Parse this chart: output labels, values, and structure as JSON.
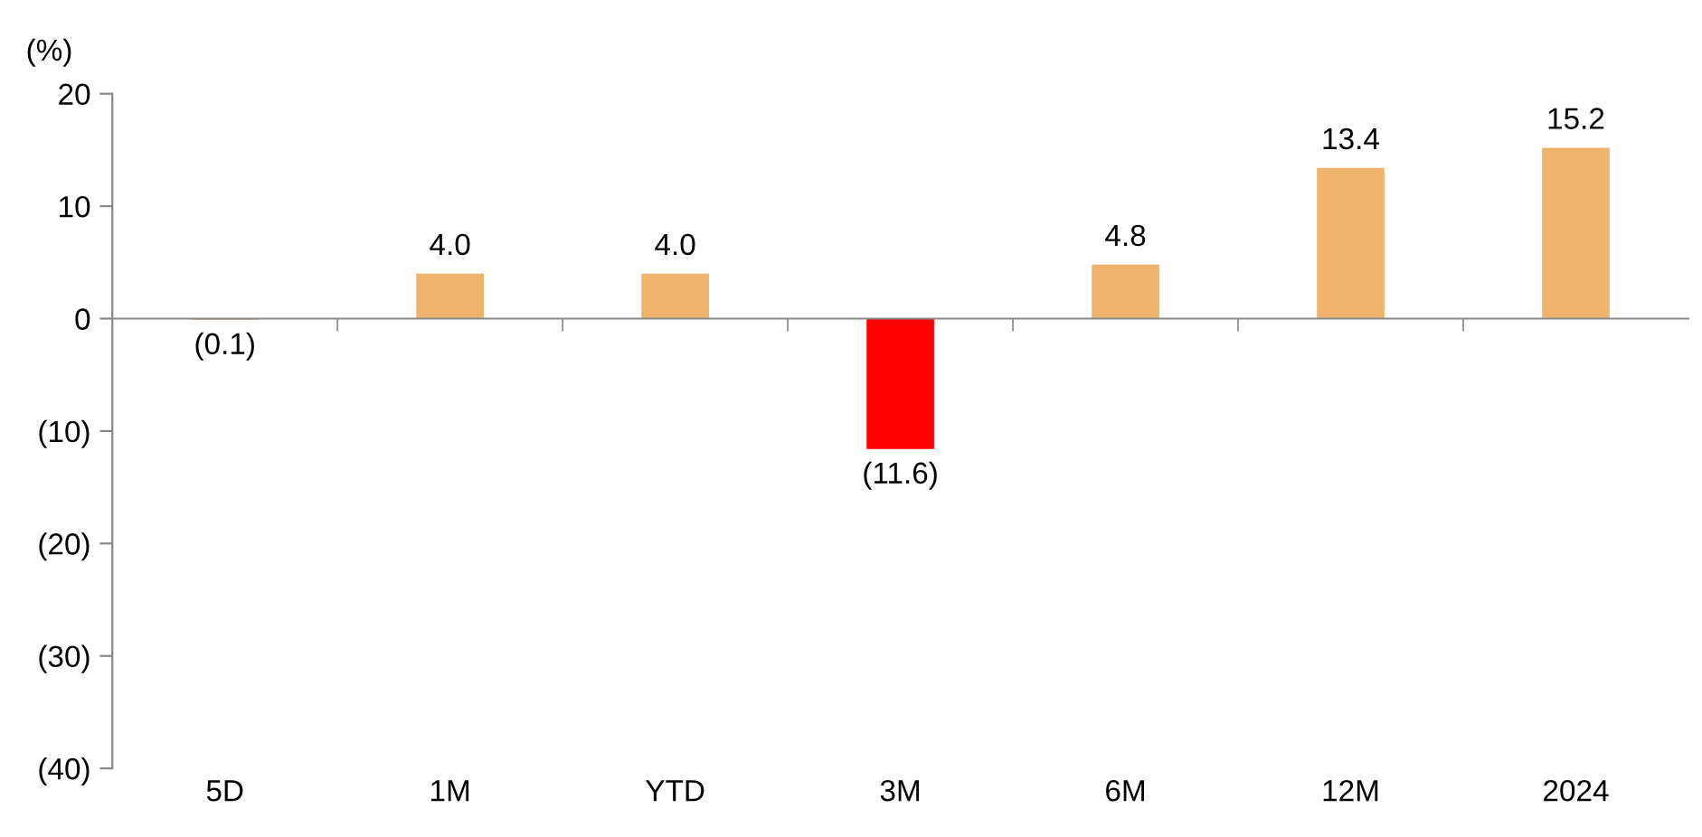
{
  "chart_data": {
    "type": "bar",
    "ylabel": "(%)",
    "categories": [
      "5D",
      "1M",
      "YTD",
      "3M",
      "6M",
      "12M",
      "2024"
    ],
    "values": [
      -0.1,
      4.0,
      4.0,
      -11.6,
      4.8,
      13.4,
      15.2
    ],
    "colors": [
      "#f0b36d",
      "#f0b36d",
      "#f0b36d",
      "#ff0000",
      "#f0b36d",
      "#f0b36d",
      "#f0b36d"
    ],
    "value_labels": [
      "(0.1)",
      "4.0",
      "4.0",
      "(11.6)",
      "4.8",
      "13.4",
      "15.2"
    ],
    "ylim": [
      -40,
      20
    ],
    "yticks": [
      {
        "value": -40,
        "label": "(40)"
      },
      {
        "value": -30,
        "label": "(30)"
      },
      {
        "value": -20,
        "label": "(20)"
      },
      {
        "value": -10,
        "label": "(10)"
      },
      0,
      10,
      20
    ],
    "tick_labels": true
  }
}
